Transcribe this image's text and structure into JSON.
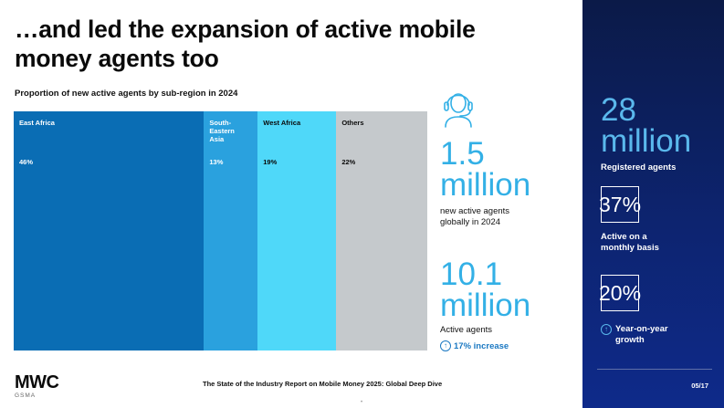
{
  "header": {
    "title": "…and led the expansion of active mobile money agents too"
  },
  "chart_data": {
    "type": "bar",
    "subtitle": "Proportion of new active agents by sub-region in 2024",
    "orientation": "stacked-100",
    "categories": [
      "East Africa",
      "South-Eastern Asia",
      "West Africa",
      "Others"
    ],
    "category_lines": [
      [
        "East Africa"
      ],
      [
        "South-",
        "Eastern",
        "Asia"
      ],
      [
        "West Africa"
      ],
      [
        "Others"
      ]
    ],
    "values": [
      46,
      13,
      19,
      22
    ],
    "value_labels": [
      "46%",
      "13%",
      "19%",
      "22%"
    ],
    "colors": [
      "#0a6db4",
      "#2aa1de",
      "#4fd8f9",
      "#c5c9cc"
    ],
    "label_colors": [
      "#ffffff",
      "#ffffff",
      "#0a0a0a",
      "#0a0a0a"
    ],
    "total": 100
  },
  "stats": {
    "agents_new": {
      "value_line1": "1.5",
      "value_line2": "million",
      "desc_line1": "new active agents",
      "desc_line2": "globally in 2024"
    },
    "agents_active": {
      "value_line1": "10.1",
      "value_line2": "million",
      "desc": "Active agents",
      "increase": "17% increase"
    }
  },
  "panel": {
    "registered_line1": "28",
    "registered_line2": "million",
    "registered_desc": "Registered agents",
    "monthly_pct": "37%",
    "monthly_desc_line1": "Active on a",
    "monthly_desc_line2": "monthly basis",
    "growth_pct": "20%",
    "growth_desc_line1": "Year-on-year",
    "growth_desc_line2": "growth",
    "page": "05/17"
  },
  "footer": {
    "logo": "MWC",
    "logo_sub": "GSMA",
    "report": "The State of the Industry Report on Mobile Money 2025: Global Deep Dive",
    "dot": "•"
  },
  "icons": {
    "headset": "headset-icon",
    "arrow_up": "arrow-up-circle-icon"
  },
  "colors": {
    "accent": "#33b0e6",
    "panel_bg": "#0d2470",
    "panel_accent": "#5ab8ec"
  }
}
